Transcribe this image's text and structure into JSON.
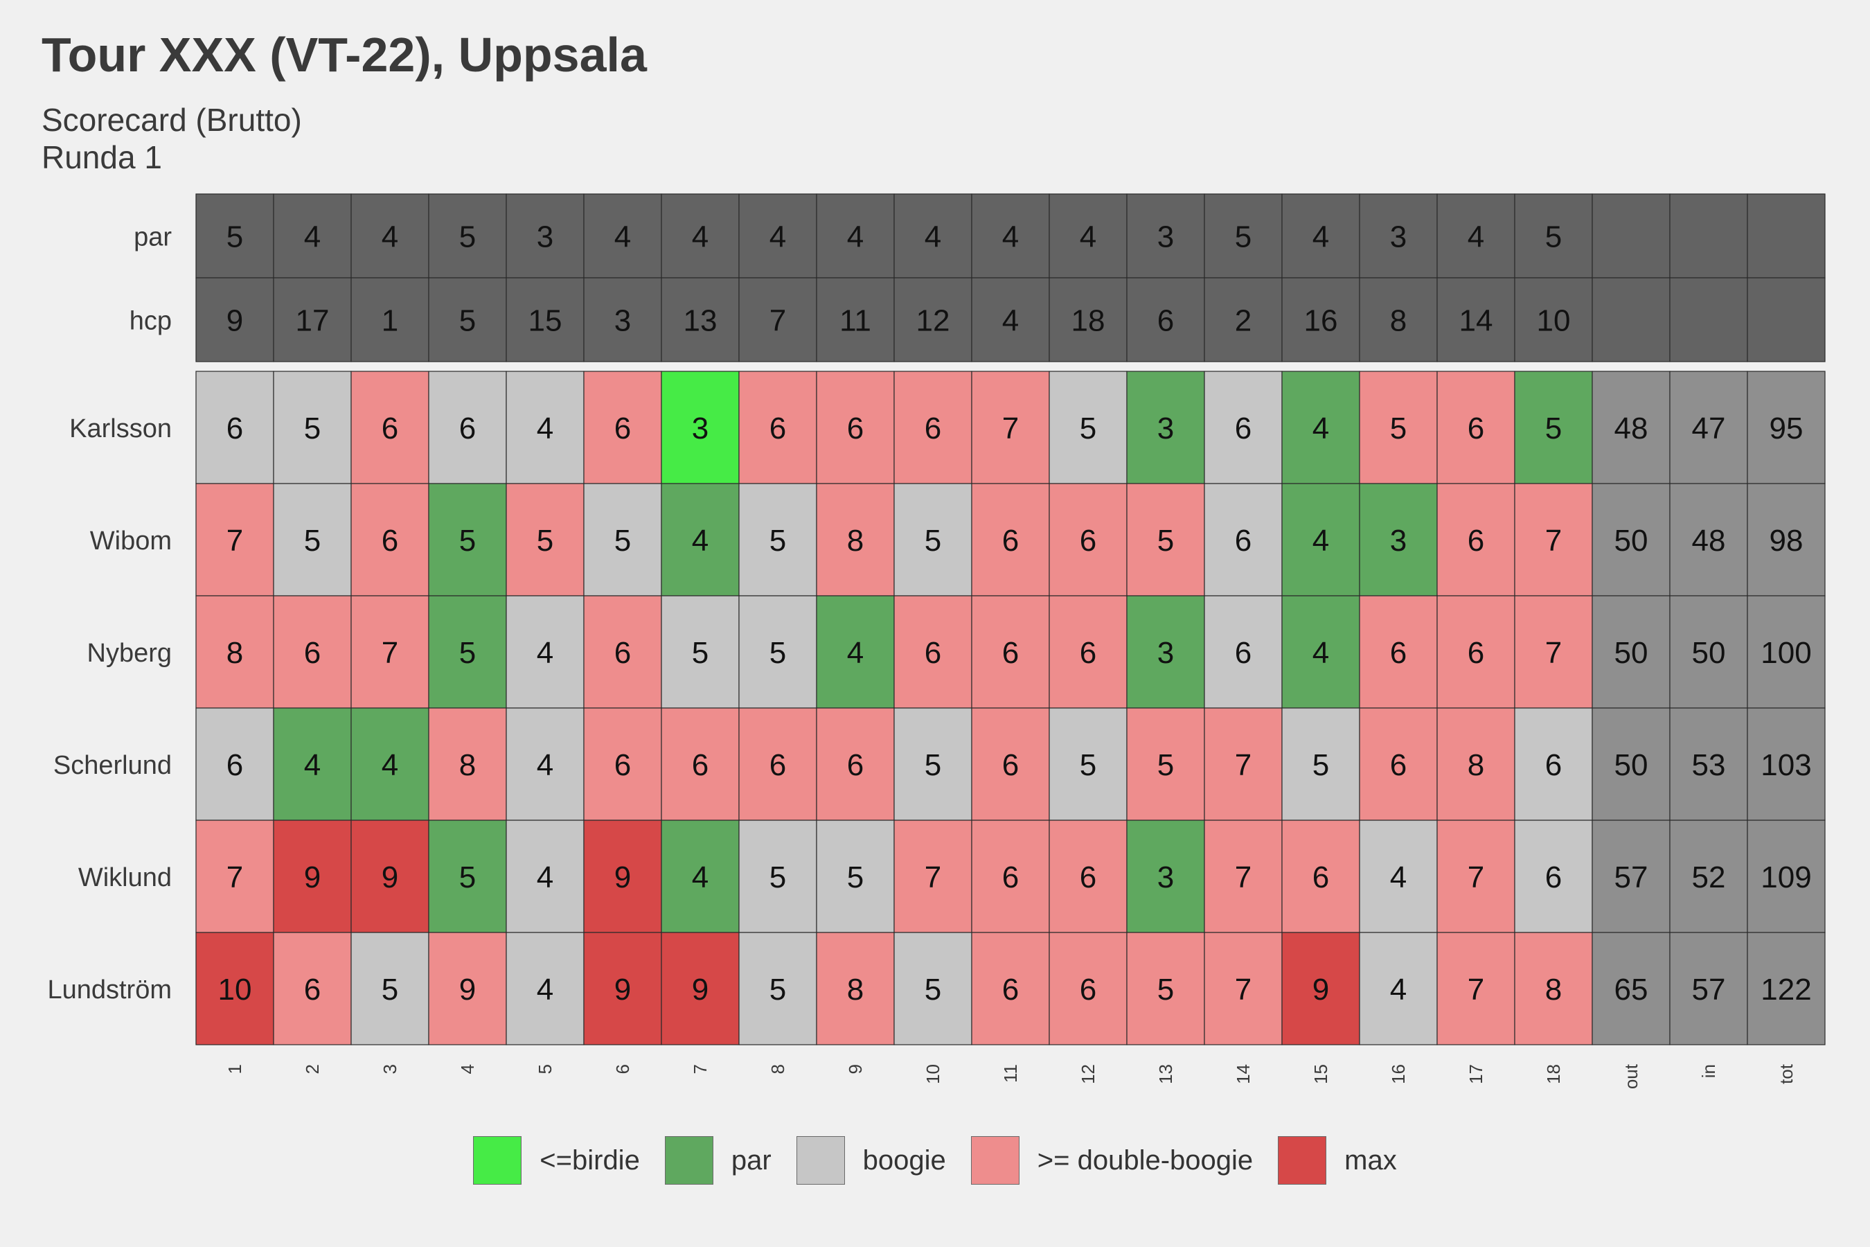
{
  "chart_data": {
    "type": "heatmap",
    "title": "Tour XXX (VT-22), Uppsala",
    "subtitle_lines": [
      "Scorecard (Brutto)",
      "Runda 1"
    ],
    "columns": [
      "1",
      "2",
      "3",
      "4",
      "5",
      "6",
      "7",
      "8",
      "9",
      "10",
      "11",
      "12",
      "13",
      "14",
      "15",
      "16",
      "17",
      "18",
      "out",
      "in",
      "tot"
    ],
    "header_rows": [
      {
        "label": "par",
        "values": [
          5,
          4,
          4,
          5,
          3,
          4,
          4,
          4,
          4,
          4,
          4,
          4,
          3,
          5,
          4,
          3,
          4,
          5
        ]
      },
      {
        "label": "hcp",
        "values": [
          9,
          17,
          1,
          5,
          15,
          3,
          13,
          7,
          11,
          12,
          4,
          18,
          6,
          2,
          16,
          8,
          14,
          10
        ]
      }
    ],
    "players": [
      {
        "name": "Karlsson",
        "scores": [
          6,
          5,
          6,
          6,
          4,
          6,
          3,
          6,
          6,
          6,
          7,
          5,
          3,
          6,
          4,
          5,
          6,
          5
        ],
        "out": 48,
        "in": 47,
        "tot": 95
      },
      {
        "name": "Wibom",
        "scores": [
          7,
          5,
          6,
          5,
          5,
          5,
          4,
          5,
          8,
          5,
          6,
          6,
          5,
          6,
          4,
          3,
          6,
          7
        ],
        "out": 50,
        "in": 48,
        "tot": 98
      },
      {
        "name": "Nyberg",
        "scores": [
          8,
          6,
          7,
          5,
          4,
          6,
          5,
          5,
          4,
          6,
          6,
          6,
          3,
          6,
          4,
          6,
          6,
          7
        ],
        "out": 50,
        "in": 50,
        "tot": 100
      },
      {
        "name": "Scherlund",
        "scores": [
          6,
          4,
          4,
          8,
          4,
          6,
          6,
          6,
          6,
          5,
          6,
          5,
          5,
          7,
          5,
          6,
          8,
          6
        ],
        "out": 50,
        "in": 53,
        "tot": 103
      },
      {
        "name": "Wiklund",
        "scores": [
          7,
          9,
          9,
          5,
          4,
          9,
          4,
          5,
          5,
          7,
          6,
          6,
          3,
          7,
          6,
          4,
          7,
          6
        ],
        "out": 57,
        "in": 52,
        "tot": 109
      },
      {
        "name": "Lundström",
        "scores": [
          10,
          6,
          5,
          9,
          4,
          9,
          9,
          5,
          8,
          5,
          6,
          6,
          5,
          7,
          9,
          4,
          7,
          8
        ],
        "out": 65,
        "in": 57,
        "tot": 122
      }
    ],
    "categories": [
      {
        "key": "birdie",
        "label": "<=birdie",
        "color": "#46eb46"
      },
      {
        "key": "par",
        "label": "par",
        "color": "#5fa85f"
      },
      {
        "key": "bogey",
        "label": "boogie",
        "color": "#c6c6c6"
      },
      {
        "key": "double",
        "label": ">= double-boogie",
        "color": "#ee8d8d"
      },
      {
        "key": "max",
        "label": "max",
        "color": "#d64848"
      }
    ],
    "header_color": "#636363",
    "totals_color": "#8f8f8f"
  }
}
